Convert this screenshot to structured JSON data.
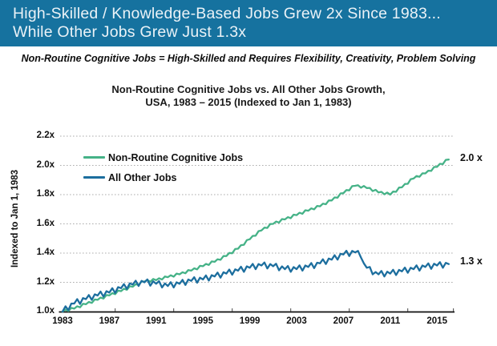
{
  "header": {
    "line1": "High-Skilled / Knowledge-Based Jobs Grew 2x Since 1983...",
    "line2": "While Other Jobs Grew Just 1.3x",
    "bg_color": "#16729F",
    "text_color": "#EAF2F7"
  },
  "footnote": "Non-Routine Cognitive Jobs = High-Skilled and Requires Flexibility, Creativity, Problem Solving",
  "chart_data": {
    "type": "line",
    "title_line1": "Non-Routine Cognitive Jobs vs. All Other Jobs Growth,",
    "title_line2": "USA, 1983 – 2015 (Indexed to Jan 1, 1983)",
    "ylabel": "Indexed to Jan 1, 1983",
    "grid": "horizontal dotted",
    "legend_position": "top-left inside plot",
    "y_ticks": [
      {
        "label": "2.2x",
        "value": 2.2
      },
      {
        "label": "2.0x",
        "value": 2.0
      },
      {
        "label": "1.8x",
        "value": 1.8
      },
      {
        "label": "1.6x",
        "value": 1.6
      },
      {
        "label": "1.4x",
        "value": 1.4
      },
      {
        "label": "1.2x",
        "value": 1.2
      },
      {
        "label": "1.0x",
        "value": 1.0
      }
    ],
    "x_ticks": [
      "1983",
      "1987",
      "1991",
      "1995",
      "1999",
      "2003",
      "2007",
      "2011",
      "2015"
    ],
    "x_tick_years": [
      1983,
      1987,
      1991,
      1995,
      1999,
      2003,
      2007,
      2011,
      2015
    ],
    "minor_axis_tick_years": [
      1987.5,
      1992.5,
      1997.5,
      2002.5,
      2007.5,
      2012.5,
      2016.4
    ],
    "x_range": [
      1983,
      2016.4
    ],
    "y_range": [
      1.0,
      2.26
    ],
    "x_start": 1983,
    "x_step_years": 0.25,
    "grid_color": "#ADADAD",
    "axis_color": "#0F0F0F",
    "series": [
      {
        "name": "Non-Routine Cognitive Jobs",
        "color": "#45B287",
        "end_label": "2.0 x",
        "values": [
          1.0,
          1.013,
          1.004,
          1.025,
          1.02,
          1.036,
          1.029,
          1.053,
          1.05,
          1.066,
          1.059,
          1.083,
          1.08,
          1.096,
          1.089,
          1.113,
          1.11,
          1.126,
          1.119,
          1.143,
          1.14,
          1.156,
          1.149,
          1.173,
          1.17,
          1.187,
          1.182,
          1.206,
          1.205,
          1.216,
          1.204,
          1.223,
          1.215,
          1.228,
          1.219,
          1.24,
          1.235,
          1.248,
          1.239,
          1.26,
          1.255,
          1.269,
          1.262,
          1.284,
          1.28,
          1.296,
          1.289,
          1.313,
          1.31,
          1.326,
          1.319,
          1.343,
          1.34,
          1.358,
          1.354,
          1.38,
          1.38,
          1.401,
          1.399,
          1.428,
          1.43,
          1.454,
          1.457,
          1.489,
          1.495,
          1.518,
          1.519,
          1.55,
          1.555,
          1.574,
          1.572,
          1.599,
          1.6,
          1.616,
          1.609,
          1.633,
          1.63,
          1.646,
          1.639,
          1.663,
          1.66,
          1.676,
          1.669,
          1.693,
          1.69,
          1.706,
          1.699,
          1.723,
          1.72,
          1.738,
          1.734,
          1.76,
          1.76,
          1.781,
          1.779,
          1.808,
          1.81,
          1.831,
          1.829,
          1.858,
          1.86,
          1.864,
          1.847,
          1.859,
          1.845,
          1.846,
          1.824,
          1.833,
          1.815,
          1.819,
          1.802,
          1.814,
          1.8,
          1.821,
          1.819,
          1.848,
          1.85,
          1.873,
          1.874,
          1.905,
          1.91,
          1.927,
          1.922,
          1.946,
          1.945,
          1.964,
          1.962,
          1.989,
          1.99,
          2.011,
          2.009,
          2.038,
          2.04
        ]
      },
      {
        "name": "All Other Jobs",
        "color": "#1C6E9E",
        "end_label": "1.3 x",
        "values": [
          1.0,
          1.036,
          1.01,
          1.055,
          1.055,
          1.085,
          1.052,
          1.092,
          1.085,
          1.113,
          1.08,
          1.118,
          1.11,
          1.137,
          1.102,
          1.139,
          1.13,
          1.16,
          1.127,
          1.167,
          1.16,
          1.188,
          1.155,
          1.193,
          1.185,
          1.211,
          1.175,
          1.21,
          1.2,
          1.22,
          1.177,
          1.207,
          1.19,
          1.208,
          1.165,
          1.193,
          1.175,
          1.201,
          1.165,
          1.2,
          1.19,
          1.217,
          1.182,
          1.219,
          1.21,
          1.235,
          1.197,
          1.232,
          1.22,
          1.247,
          1.212,
          1.249,
          1.24,
          1.267,
          1.232,
          1.269,
          1.26,
          1.287,
          1.252,
          1.289,
          1.28,
          1.307,
          1.272,
          1.309,
          1.3,
          1.326,
          1.29,
          1.325,
          1.315,
          1.336,
          1.295,
          1.325,
          1.31,
          1.327,
          1.282,
          1.309,
          1.29,
          1.312,
          1.272,
          1.304,
          1.29,
          1.316,
          1.28,
          1.315,
          1.305,
          1.332,
          1.297,
          1.334,
          1.33,
          1.358,
          1.325,
          1.363,
          1.355,
          1.386,
          1.355,
          1.395,
          1.39,
          1.416,
          1.38,
          1.415,
          1.405,
          1.415,
          1.37,
          1.33,
          1.3,
          1.305,
          1.255,
          1.27,
          1.255,
          1.278,
          1.24,
          1.273,
          1.26,
          1.286,
          1.25,
          1.285,
          1.275,
          1.301,
          1.265,
          1.3,
          1.29,
          1.316,
          1.28,
          1.315,
          1.305,
          1.33,
          1.292,
          1.327,
          1.315,
          1.338,
          1.3,
          1.333,
          1.325
        ]
      }
    ]
  }
}
